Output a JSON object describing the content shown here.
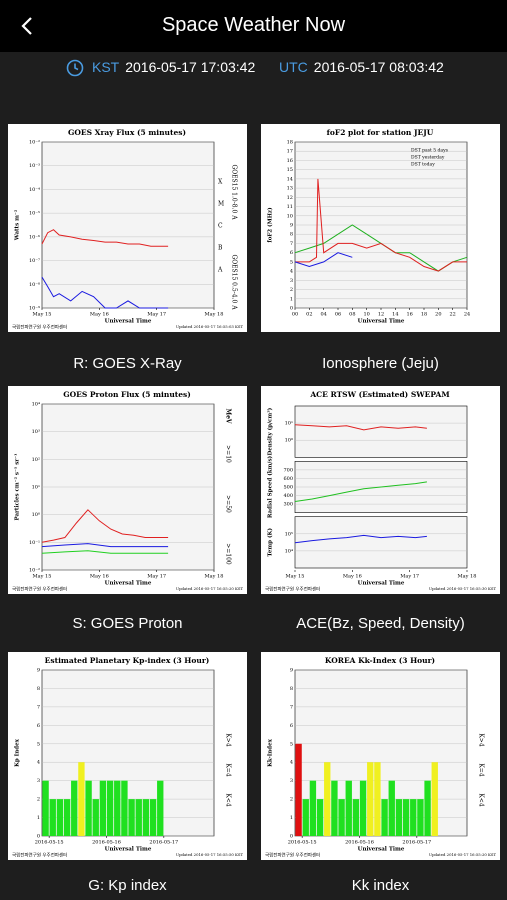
{
  "header": {
    "title": "Space Weather Now",
    "kst_label": "KST",
    "kst": "2016-05-17 17:03:42",
    "utc_label": "UTC",
    "utc": "2016-05-17 08:03:42"
  },
  "panels": [
    {
      "caption": "R: GOES X-Ray",
      "chart": {
        "type": "line",
        "title": "GOES Xray Flux (5 minutes)",
        "ylabel": "Watts m⁻²",
        "xlabel": "Universal Time",
        "log": true,
        "ylim": [
          1e-09,
          0.01
        ],
        "yticks": [
          {
            "value": 1e-09,
            "label": "10⁻⁹"
          },
          {
            "value": 1e-08,
            "label": "10⁻⁸"
          },
          {
            "value": 1e-07,
            "label": "10⁻⁷"
          },
          {
            "value": 1e-06,
            "label": "10⁻⁶"
          },
          {
            "value": 1e-05,
            "label": "10⁻⁵"
          },
          {
            "value": 0.0001,
            "label": "10⁻⁴"
          },
          {
            "value": 0.001,
            "label": "10⁻³"
          },
          {
            "value": 0.01,
            "label": "10⁻²"
          }
        ],
        "xlim": [
          0,
          3
        ],
        "xticks": [
          {
            "value": 0,
            "label": "May 15"
          },
          {
            "value": 1,
            "label": "May 16"
          },
          {
            "value": 2,
            "label": "May 17"
          },
          {
            "value": 3,
            "label": "May 18"
          }
        ],
        "classes": [
          "X",
          "M",
          "C",
          "B",
          "A"
        ],
        "series": [
          {
            "name": "GOES15 1.0-8.0 A",
            "color": "#e02020",
            "x": [
              0,
              0.1,
              0.2,
              0.3,
              0.5,
              0.7,
              0.9,
              1.1,
              1.3,
              1.5,
              1.7,
              1.9,
              2.1,
              2.2
            ],
            "values": [
              5e-07,
              1.5e-06,
              2e-06,
              1.2e-06,
              1e-06,
              8e-07,
              7e-07,
              6e-07,
              6e-07,
              5e-07,
              5e-07,
              4e-07,
              4e-07,
              4e-07
            ]
          },
          {
            "name": "GOES15 0.5-4.0 A",
            "color": "#1a1ae0",
            "x": [
              0,
              0.1,
              0.2,
              0.3,
              0.5,
              0.7,
              0.9,
              1.1,
              1.3,
              1.5,
              1.7,
              1.9,
              2.1,
              2.2
            ],
            "values": [
              2e-08,
              8e-09,
              3e-09,
              4e-09,
              2e-09,
              5e-09,
              3e-09,
              1e-09,
              1e-09,
              2e-09,
              1e-09,
              1e-09,
              1e-09,
              1e-09
            ]
          }
        ],
        "footer_left": "국립전파연구원 우주전파센터",
        "footer_right": "Updated 2016-05-17 16:55:03 KST"
      }
    },
    {
      "caption": "Ionosphere (Jeju)",
      "chart": {
        "type": "line",
        "title": "foF2 plot for station JEJU",
        "ylabel": "foF2 (MHz)",
        "xlabel": "Universal Time",
        "ylim": [
          0,
          18
        ],
        "yticks": [
          0,
          1,
          2,
          3,
          4,
          5,
          6,
          7,
          8,
          9,
          10,
          11,
          12,
          13,
          14,
          15,
          16,
          17,
          18
        ],
        "xlim": [
          0,
          24
        ],
        "xticks": [
          {
            "value": 0,
            "label": "00"
          },
          {
            "value": 2,
            "label": "02"
          },
          {
            "value": 4,
            "label": "04"
          },
          {
            "value": 6,
            "label": "06"
          },
          {
            "value": 8,
            "label": "08"
          },
          10,
          12,
          14,
          16,
          18,
          20,
          22,
          24
        ],
        "legend": true,
        "series": [
          {
            "name": "DST past 5 days",
            "color": "#20b020",
            "x": [
              0,
              2,
              4,
              6,
              8,
              10,
              12,
              14,
              16,
              18,
              20,
              22,
              24
            ],
            "values": [
              6,
              6.5,
              7,
              8,
              9,
              8,
              7,
              6,
              6,
              5,
              4,
              5,
              5.5
            ]
          },
          {
            "name": "DST yesterday",
            "color": "#e02020",
            "x": [
              0,
              2,
              3,
              3.2,
              4,
              6,
              8,
              10,
              12,
              14,
              16,
              18,
              20,
              22,
              24
            ],
            "values": [
              5,
              5,
              5.5,
              14,
              6,
              7,
              7,
              6.5,
              7,
              6,
              5.5,
              4.5,
              4,
              5,
              5
            ]
          },
          {
            "name": "DST today",
            "color": "#1a1ae0",
            "x": [
              0,
              2,
              4,
              6,
              8
            ],
            "values": [
              5,
              4.5,
              5,
              6,
              5.5
            ]
          }
        ]
      }
    },
    {
      "caption": "S: GOES Proton",
      "chart": {
        "type": "line",
        "title": "GOES Proton Flux (5 minutes)",
        "ylabel": "Particles cm⁻² s⁻¹ sr⁻¹",
        "xlabel": "Universal Time",
        "log": true,
        "ylim": [
          0.01,
          10000.0
        ],
        "yticks": [
          {
            "value": 0.01,
            "label": "10⁻²"
          },
          {
            "value": 0.1,
            "label": "10⁻¹"
          },
          {
            "value": 1,
            "label": "10⁰"
          },
          {
            "value": 10,
            "label": "10¹"
          },
          {
            "value": 100,
            "label": "10²"
          },
          {
            "value": 1000,
            "label": "10³"
          },
          {
            "value": 10000,
            "label": "10⁴"
          }
        ],
        "xlim": [
          0,
          3
        ],
        "xticks": [
          {
            "value": 0,
            "label": "May 15"
          },
          {
            "value": 1,
            "label": "May 16"
          },
          {
            "value": 2,
            "label": "May 17"
          },
          {
            "value": 3,
            "label": "May 18"
          }
        ],
        "unit": "MeV",
        "series": [
          {
            "name": ">=10",
            "color": "#e02020",
            "x": [
              0,
              0.2,
              0.4,
              0.6,
              0.8,
              1.0,
              1.2,
              1.4,
              1.6,
              1.8,
              2.0,
              2.2
            ],
            "values": [
              0.1,
              0.12,
              0.15,
              0.5,
              1.5,
              0.6,
              0.3,
              0.2,
              0.18,
              0.15,
              0.15,
              0.15
            ]
          },
          {
            "name": ">=50",
            "color": "#1a1ae0",
            "x": [
              0,
              0.4,
              0.8,
              1.2,
              1.6,
              2.0,
              2.2
            ],
            "values": [
              0.07,
              0.08,
              0.09,
              0.07,
              0.07,
              0.07,
              0.07
            ]
          },
          {
            "name": ">=100",
            "color": "#20d020",
            "x": [
              0,
              0.4,
              0.8,
              1.2,
              1.6,
              2.0,
              2.2
            ],
            "values": [
              0.04,
              0.045,
              0.05,
              0.04,
              0.04,
              0.04,
              0.04
            ]
          }
        ],
        "footer_left": "국립전파연구원 우주전파센터",
        "footer_right": "Updated 2016-05-17 16:55:20 KST"
      }
    },
    {
      "caption": "ACE(Bz, Speed, Density)",
      "chart": {
        "type": "multi",
        "title": "ACE RTSW (Estimated) SWEPAM",
        "xlabel": "Universal Time",
        "xlim": [
          0,
          3
        ],
        "xticks": [
          {
            "value": 0,
            "label": "May 15"
          },
          {
            "value": 1,
            "label": "May 16"
          },
          {
            "value": 2,
            "label": "May 17"
          },
          {
            "value": 3,
            "label": "May 18"
          }
        ],
        "plots": [
          {
            "ylabel": "Density (p/cm³)",
            "log": true,
            "ylim": [
              0.1,
              100
            ],
            "yticks": [
              {
                "value": 1,
                "label": "10⁰"
              },
              {
                "value": 10,
                "label": "10¹"
              }
            ],
            "series": [
              {
                "color": "#e02020",
                "x": [
                  0,
                  0.3,
                  0.6,
                  0.9,
                  1.2,
                  1.5,
                  1.8,
                  2.1,
                  2.3
                ],
                "values": [
                  8,
                  7,
                  6,
                  7,
                  4,
                  6,
                  5,
                  6,
                  5
                ]
              }
            ]
          },
          {
            "ylabel": "Radial Speed (km/s)",
            "ylim": [
              200,
              800
            ],
            "yticks": [
              300,
              400,
              500,
              600,
              700
            ],
            "series": [
              {
                "color": "#20c020",
                "x": [
                  0,
                  0.3,
                  0.6,
                  0.9,
                  1.2,
                  1.5,
                  1.8,
                  2.1,
                  2.3
                ],
                "values": [
                  330,
                  360,
                  400,
                  440,
                  480,
                  500,
                  520,
                  540,
                  560
                ]
              }
            ]
          },
          {
            "ylabel": "Temp (K)",
            "log": true,
            "ylim": [
              1000.0,
              1000000.0
            ],
            "yticks": [
              {
                "value": 10000.0,
                "label": "10⁴"
              },
              {
                "value": 100000.0,
                "label": "10⁵"
              }
            ],
            "series": [
              {
                "color": "#1a1ae0",
                "x": [
                  0,
                  0.3,
                  0.6,
                  0.9,
                  1.2,
                  1.5,
                  1.8,
                  2.1,
                  2.3
                ],
                "values": [
                  30000.0,
                  40000.0,
                  50000.0,
                  60000.0,
                  80000.0,
                  60000.0,
                  70000.0,
                  60000.0,
                  70000.0
                ]
              }
            ]
          }
        ],
        "footer_left": "국립전파연구원 우주전파센터",
        "footer_right": "Updated 2016-05-17 16:55:30 KST"
      }
    },
    {
      "caption": "G: Kp index",
      "chart": {
        "type": "bar",
        "title": "Estimated Planetary Kp-index (3 Hour)",
        "ylabel": "Kp Index",
        "xlabel": "Universal Time",
        "ylim": [
          0,
          9
        ],
        "yticks": [
          0,
          1,
          2,
          3,
          4,
          5,
          6,
          7,
          8,
          9
        ],
        "xlim": [
          0,
          24
        ],
        "xticks": [
          {
            "value": 1,
            "label": "2016-05-15"
          },
          {
            "value": 9,
            "label": "2016-05-16"
          },
          {
            "value": 17,
            "label": "2016-05-17"
          }
        ],
        "legend_items": [
          {
            "label": "K>4",
            "color": "#e01010"
          },
          {
            "label": "K=4",
            "color": "#f0f020"
          },
          {
            "label": "K<4",
            "color": "#20e020"
          }
        ],
        "values": [
          3,
          2,
          2,
          2,
          3,
          4,
          3,
          2,
          3,
          3,
          3,
          3,
          2,
          2,
          2,
          2,
          3
        ],
        "footer_left": "국립전파연구원 우주전파센터",
        "footer_right": "Updated 2016-05-17 16:55:50 KST"
      }
    },
    {
      "caption": "Kk index",
      "chart": {
        "type": "bar",
        "title": "KOREA Kk-Index (3 Hour)",
        "ylabel": "Kk-Index",
        "xlabel": "Universal Time",
        "ylim": [
          0,
          9
        ],
        "yticks": [
          0,
          1,
          2,
          3,
          4,
          5,
          6,
          7,
          8,
          9
        ],
        "xlim": [
          0,
          24
        ],
        "xticks": [
          {
            "value": 1,
            "label": "2016-05-15"
          },
          {
            "value": 9,
            "label": "2016-05-16"
          },
          {
            "value": 17,
            "label": "2016-05-17"
          }
        ],
        "legend_items": [
          {
            "label": "K>4",
            "color": "#e01010"
          },
          {
            "label": "K=4",
            "color": "#f0f020"
          },
          {
            "label": "K<4",
            "color": "#20e020"
          }
        ],
        "values": [
          5,
          2,
          3,
          2,
          4,
          3,
          2,
          3,
          2,
          3,
          4,
          4,
          2,
          3,
          2,
          2,
          2,
          2,
          3,
          4
        ],
        "footer_left": "국립전파연구원 우주전파센터",
        "footer_right": "Updated 2016-05-17 16:55:20 KST"
      }
    }
  ]
}
